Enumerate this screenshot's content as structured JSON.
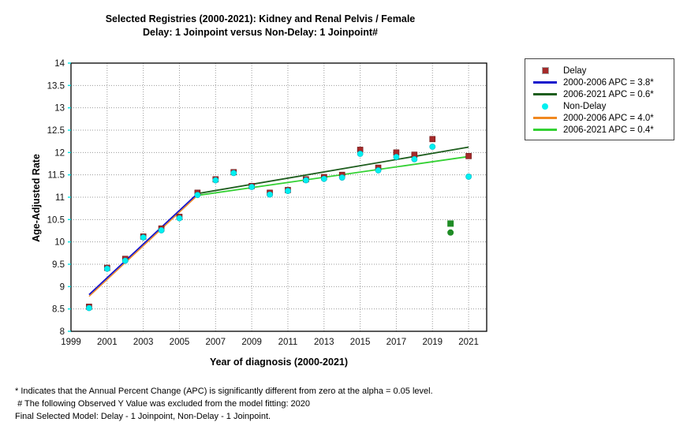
{
  "title": {
    "line1": "Selected Registries (2000-2021): Kidney and Renal Pelvis / Female",
    "line2": "Delay: 1 Joinpoint  versus  Non-Delay: 1 Joinpoint#"
  },
  "legend": {
    "items": [
      {
        "label": "Delay",
        "marker": "square",
        "color": "#A52A2A"
      },
      {
        "label": "2000-2006 APC  = 3.8*",
        "marker": "line",
        "color": "#1414CC"
      },
      {
        "label": "2006-2021 APC  = 0.6*",
        "marker": "line",
        "color": "#1E5E1E"
      },
      {
        "label": "Non-Delay",
        "marker": "circle",
        "color": "#00F0F0"
      },
      {
        "label": "2000-2006 APC  = 4.0*",
        "marker": "line",
        "color": "#F08820"
      },
      {
        "label": "2006-2021 APC  = 0.4*",
        "marker": "line",
        "color": "#33D133"
      }
    ]
  },
  "chart_data": {
    "type": "scatter",
    "title": "Selected Registries (2000-2021): Kidney and Renal Pelvis / Female — Delay: 1 Joinpoint versus Non-Delay: 1 Joinpoint#",
    "x_axis": {
      "label": "Year of diagnosis (2000-2021)",
      "range": [
        1999,
        2022
      ],
      "tick_labels": [
        1999,
        2001,
        2003,
        2005,
        2007,
        2009,
        2011,
        2013,
        2015,
        2017,
        2019,
        2021
      ],
      "grid": true
    },
    "y_axis": {
      "label": "Age-Adjusted Rate",
      "range": [
        8,
        14
      ],
      "tick_step": 0.5,
      "grid": true
    },
    "series": [
      {
        "name": "Delay",
        "marker": "square",
        "color": "#A52A2A",
        "x": [
          2000,
          2001,
          2002,
          2003,
          2004,
          2005,
          2006,
          2007,
          2008,
          2009,
          2010,
          2011,
          2012,
          2013,
          2014,
          2015,
          2016,
          2017,
          2018,
          2019,
          2021
        ],
        "y": [
          8.55,
          9.42,
          9.62,
          10.12,
          10.3,
          10.56,
          11.1,
          11.4,
          11.56,
          11.25,
          11.1,
          11.16,
          11.4,
          11.45,
          11.5,
          12.06,
          11.66,
          12.0,
          11.95,
          12.3,
          11.92
        ]
      },
      {
        "name": "Non-Delay",
        "marker": "circle",
        "color": "#00F0F0",
        "x": [
          2000,
          2001,
          2002,
          2003,
          2004,
          2005,
          2006,
          2007,
          2008,
          2009,
          2010,
          2011,
          2012,
          2013,
          2014,
          2015,
          2016,
          2017,
          2018,
          2019,
          2021
        ],
        "y": [
          8.52,
          9.4,
          9.58,
          10.1,
          10.26,
          10.53,
          11.05,
          11.38,
          11.54,
          11.23,
          11.06,
          11.14,
          11.38,
          11.41,
          11.44,
          11.97,
          11.6,
          11.9,
          11.85,
          12.13,
          11.46
        ]
      }
    ],
    "excluded_points": {
      "note": "2020 observed values excluded from model fitting",
      "color": "#1F8C25",
      "points": [
        {
          "series": "Delay",
          "marker": "square",
          "x": 2020,
          "y": 10.41
        },
        {
          "series": "Non-Delay",
          "marker": "circle",
          "x": 2020,
          "y": 10.21
        }
      ]
    },
    "fit_lines": [
      {
        "name": "Delay 2000-2006 APC = 3.8*",
        "color": "#1414CC",
        "x1": 2000,
        "y1": 8.82,
        "x2": 2006,
        "y2": 11.08
      },
      {
        "name": "Delay 2006-2021 APC = 0.6*",
        "color": "#1E5E1E",
        "x1": 2006,
        "y1": 11.08,
        "x2": 2021,
        "y2": 12.12
      },
      {
        "name": "Non-Delay 2000-2006 APC = 4.0*",
        "color": "#F08820",
        "x1": 2000,
        "y1": 8.78,
        "x2": 2006,
        "y2": 11.04
      },
      {
        "name": "Non-Delay 2006-2021 APC = 0.4*",
        "color": "#33D133",
        "x1": 2006,
        "y1": 11.04,
        "x2": 2021,
        "y2": 11.91
      }
    ],
    "legend_position": "top-right-outside"
  },
  "footnotes": [
    "* Indicates that the Annual Percent Change (APC) is significantly different from zero at the alpha = 0.05 level.",
    " # The following Observed Y Value was excluded from the model fitting: 2020",
    "Final Selected Model: Delay - 1 Joinpoint, Non-Delay - 1 Joinpoint."
  ]
}
